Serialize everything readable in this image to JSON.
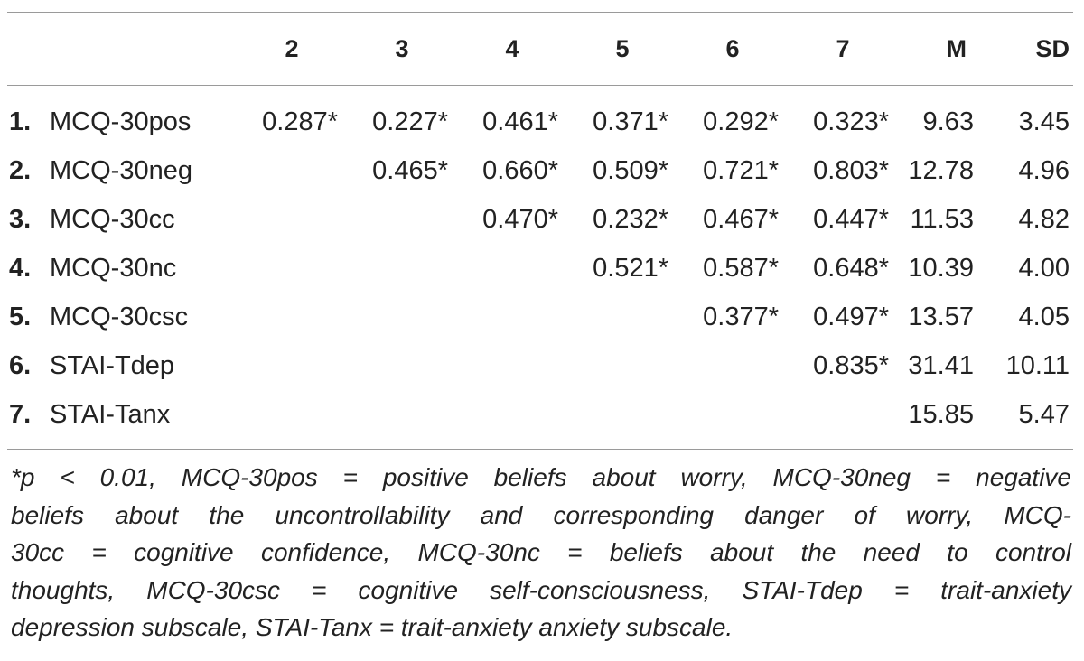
{
  "table": {
    "headers": [
      "",
      "2",
      "3",
      "4",
      "5",
      "6",
      "7",
      "M",
      "SD"
    ],
    "rows": [
      {
        "num": "1.",
        "label": "MCQ-30pos",
        "cells": [
          "0.287*",
          "0.227*",
          "0.461*",
          "0.371*",
          "0.292*",
          "0.323*"
        ],
        "m": "9.63",
        "sd": "3.45"
      },
      {
        "num": "2.",
        "label": "MCQ-30neg",
        "cells": [
          "",
          "0.465*",
          "0.660*",
          "0.509*",
          "0.721*",
          "0.803*"
        ],
        "m": "12.78",
        "sd": "4.96"
      },
      {
        "num": "3.",
        "label": "MCQ-30cc",
        "cells": [
          "",
          "",
          "0.470*",
          "0.232*",
          "0.467*",
          "0.447*"
        ],
        "m": "11.53",
        "sd": "4.82"
      },
      {
        "num": "4.",
        "label": "MCQ-30nc",
        "cells": [
          "",
          "",
          "",
          "0.521*",
          "0.587*",
          "0.648*"
        ],
        "m": "10.39",
        "sd": "4.00"
      },
      {
        "num": "5.",
        "label": "MCQ-30csc",
        "cells": [
          "",
          "",
          "",
          "",
          "0.377*",
          "0.497*"
        ],
        "m": "13.57",
        "sd": "4.05"
      },
      {
        "num": "6.",
        "label": "STAI-Tdep",
        "cells": [
          "",
          "",
          "",
          "",
          "",
          "0.835*"
        ],
        "m": "31.41",
        "sd": "10.11"
      },
      {
        "num": "7.",
        "label": "STAI-Tanx",
        "cells": [
          "",
          "",
          "",
          "",
          "",
          ""
        ],
        "m": "15.85",
        "sd": "5.47"
      }
    ]
  },
  "footnote": {
    "lines": [
      "*p < 0.01, MCQ-30pos = positive beliefs about worry, MCQ-30neg = negative",
      "beliefs about the uncontrollability and corresponding danger of worry, MCQ-",
      "30cc = cognitive confidence, MCQ-30nc = beliefs about the need to control",
      "thoughts, MCQ-30csc = cognitive self-consciousness, STAI-Tdep = trait-anxiety",
      "depression subscale, STAI-Tanx = trait-anxiety anxiety subscale."
    ]
  }
}
